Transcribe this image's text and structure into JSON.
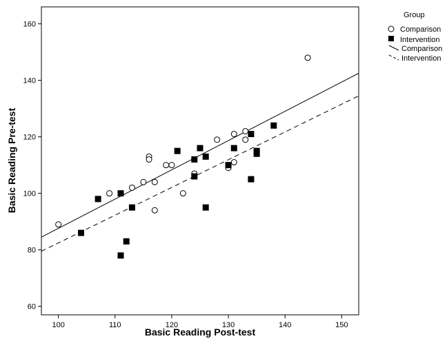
{
  "chart_data": {
    "type": "scatter",
    "xlabel": "Basic Reading Post-test",
    "ylabel": "Basic Reading Pre-test",
    "xlim": [
      97,
      153
    ],
    "ylim": [
      57,
      166
    ],
    "xticks": [
      100,
      110,
      120,
      130,
      140,
      150
    ],
    "yticks": [
      60,
      80,
      100,
      120,
      140,
      160
    ],
    "grid": false,
    "legend": {
      "title": "Group",
      "position": "top-right",
      "entries": [
        {
          "label": "Comparison",
          "marker": "open-circle"
        },
        {
          "label": "Intervention",
          "marker": "filled-square"
        },
        {
          "label": "Comparison",
          "marker": "solid-line"
        },
        {
          "label": "Intervention",
          "marker": "dashed-line"
        }
      ]
    },
    "series": [
      {
        "name": "Comparison",
        "marker": "open-circle",
        "points": [
          [
            100,
            89
          ],
          [
            109,
            100
          ],
          [
            113,
            102
          ],
          [
            115,
            104
          ],
          [
            116,
            113
          ],
          [
            116,
            112
          ],
          [
            117,
            104
          ],
          [
            117,
            94
          ],
          [
            119,
            110
          ],
          [
            120,
            110
          ],
          [
            122,
            100
          ],
          [
            124,
            107
          ],
          [
            128,
            119
          ],
          [
            130,
            109
          ],
          [
            130,
            110
          ],
          [
            131,
            121
          ],
          [
            131,
            111
          ],
          [
            133,
            122
          ],
          [
            133,
            119
          ],
          [
            144,
            148
          ]
        ],
        "fit_line": {
          "style": "solid",
          "x": [
            97,
            153
          ],
          "y": [
            84.5,
            142.5
          ]
        }
      },
      {
        "name": "Intervention",
        "marker": "filled-square",
        "points": [
          [
            104,
            86
          ],
          [
            107,
            98
          ],
          [
            111,
            100
          ],
          [
            111,
            78
          ],
          [
            112,
            83
          ],
          [
            113,
            95
          ],
          [
            121,
            115
          ],
          [
            124,
            112
          ],
          [
            124,
            106
          ],
          [
            125,
            116
          ],
          [
            126,
            113
          ],
          [
            126,
            95
          ],
          [
            130,
            110
          ],
          [
            131,
            116
          ],
          [
            134,
            121
          ],
          [
            134,
            105
          ],
          [
            135,
            115
          ],
          [
            135,
            114
          ],
          [
            138,
            124
          ]
        ],
        "fit_line": {
          "style": "dashed",
          "x": [
            97,
            153
          ],
          "y": [
            79.5,
            134.5
          ]
        }
      }
    ]
  }
}
